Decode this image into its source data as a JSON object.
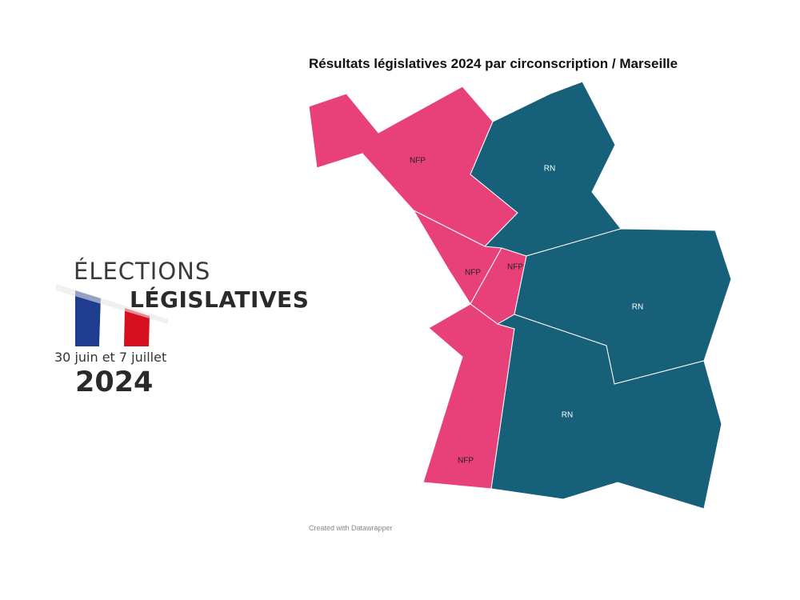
{
  "logo": {
    "line1": "ÉLECTIONS",
    "line2": "LÉGISLATIVES",
    "dates": "30 juin et 7 juillet",
    "year": "2024",
    "flag_colors": {
      "blue": "#1f3d8f",
      "white": "#ffffff",
      "red": "#d6101e"
    }
  },
  "map": {
    "title": "Résultats législatives 2024 par circonscription / Marseille",
    "credit": "Created with Datawrapper",
    "colors": {
      "NFP": "#e8417a",
      "RN": "#17607a"
    },
    "regions": [
      {
        "id": "north-west",
        "party": "NFP",
        "label": "NFP"
      },
      {
        "id": "north-east",
        "party": "RN",
        "label": "RN"
      },
      {
        "id": "center-west",
        "party": "NFP",
        "label": "NFP"
      },
      {
        "id": "center-small",
        "party": "NFP",
        "label": "NFP"
      },
      {
        "id": "east",
        "party": "RN",
        "label": "RN"
      },
      {
        "id": "south-west",
        "party": "NFP",
        "label": "NFP"
      },
      {
        "id": "south-east",
        "party": "RN",
        "label": "RN"
      }
    ]
  }
}
